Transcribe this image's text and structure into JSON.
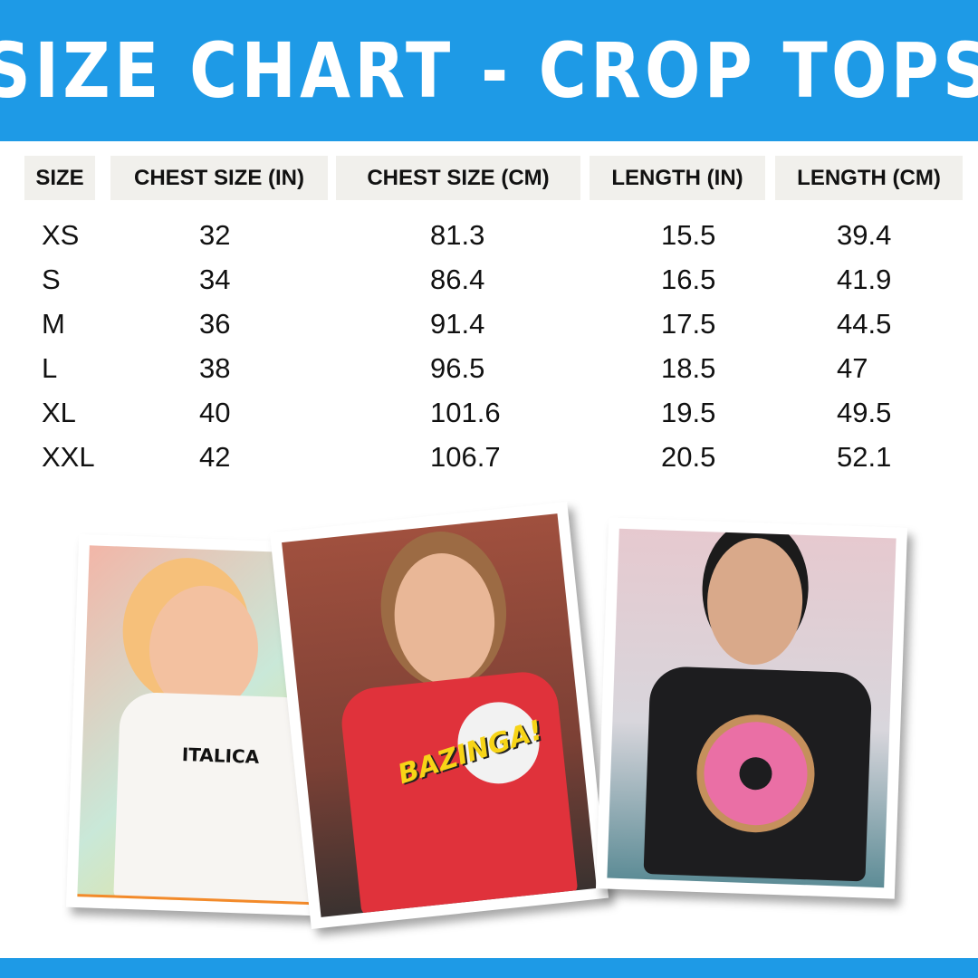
{
  "title": "SIZE CHART - CROP TOPS",
  "colors": {
    "banner": "#1e9ae6",
    "header_cell": "#f1f0ec",
    "text": "#111111"
  },
  "table": {
    "headers": [
      "SIZE",
      "CHEST SIZE (IN)",
      "CHEST SIZE (CM)",
      "LENGTH (IN)",
      "LENGTH (CM)"
    ],
    "rows": [
      [
        "XS",
        "32",
        "81.3",
        "15.5",
        "39.4"
      ],
      [
        "S",
        "34",
        "86.4",
        "16.5",
        "41.9"
      ],
      [
        "M",
        "36",
        "91.4",
        "17.5",
        "44.5"
      ],
      [
        "L",
        "38",
        "96.5",
        "18.5",
        "47"
      ],
      [
        "XL",
        "40",
        "101.6",
        "19.5",
        "49.5"
      ],
      [
        "XXL",
        "42",
        "106.7",
        "20.5",
        "52.1"
      ]
    ]
  },
  "photos": [
    {
      "shirt_color": "#f7f5f2",
      "print_text": "ITALICA"
    },
    {
      "shirt_color": "#e0323b",
      "print_text": "BAZINGA!"
    },
    {
      "shirt_color": "#1d1d1f",
      "print_text": ""
    }
  ]
}
